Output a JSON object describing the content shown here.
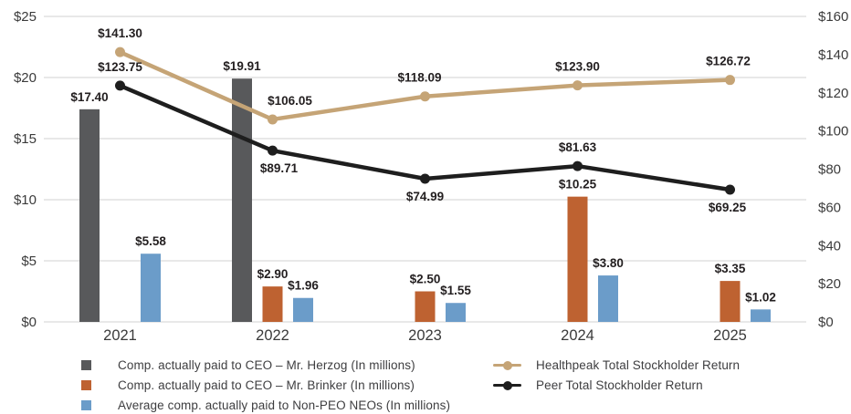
{
  "chart_data": {
    "type": "combo-bar-line",
    "title": "",
    "categories": [
      "2021",
      "2022",
      "2023",
      "2024",
      "2025"
    ],
    "left_axis": {
      "ticks": [
        "$25",
        "$20",
        "$15",
        "$10",
        "$5",
        "$0"
      ],
      "min": 0,
      "max": 25
    },
    "right_axis": {
      "ticks": [
        "$160",
        "$140",
        "$120",
        "$100",
        "$80",
        "$60",
        "$40",
        "$20",
        "$0"
      ],
      "min": 0,
      "max": 160
    },
    "grid": true,
    "legend_position": "bottom",
    "bar_series": [
      {
        "key": "ceo-herzog",
        "name": "Comp. actually paid to CEO – Mr. Herzog (In millions)",
        "color": "#58595B",
        "values": [
          17.4,
          19.91,
          null,
          null,
          null
        ],
        "labels": [
          "$17.40",
          "$19.91",
          "",
          "",
          ""
        ]
      },
      {
        "key": "ceo-brinker",
        "name": "Comp. actually paid to CEO – Mr. Brinker (In millions)",
        "color": "#BE6231",
        "values": [
          null,
          2.9,
          2.5,
          10.25,
          3.35
        ],
        "labels": [
          "",
          "$2.90",
          "$2.50",
          "$10.25",
          "$3.35"
        ]
      },
      {
        "key": "non-peo-neos",
        "name": "Average comp. actually paid to Non-PEO NEOs (In millions)",
        "color": "#6B9CC9",
        "values": [
          5.58,
          1.96,
          1.55,
          3.8,
          1.02
        ],
        "labels": [
          "$5.58",
          "$1.96",
          "$1.55",
          "$3.80",
          "$1.02"
        ]
      }
    ],
    "line_series": [
      {
        "key": "healthpeak-tsr",
        "name": "Healthpeak Total Stockholder Return",
        "color": "#C5A476",
        "values": [
          141.3,
          106.05,
          118.09,
          123.9,
          126.72
        ],
        "labels": [
          "$141.30",
          "$106.05",
          "$118.09",
          "$123.90",
          "$126.72"
        ],
        "label_side": [
          "above",
          "above",
          "above",
          "above",
          "above"
        ],
        "label_dx": [
          0,
          19,
          -6,
          0,
          -2
        ]
      },
      {
        "key": "peer-tsr",
        "name": "Peer Total Stockholder Return",
        "color": "#1E1E1E",
        "values": [
          123.75,
          89.71,
          74.99,
          81.63,
          69.25
        ],
        "labels": [
          "$123.75",
          "$89.71",
          "$74.99",
          "$81.63",
          "$69.25"
        ],
        "label_side": [
          "above",
          "below",
          "below",
          "above",
          "below"
        ],
        "label_dx": [
          0,
          7,
          0,
          0,
          -3
        ]
      }
    ],
    "colors": {
      "grid": "#DBDBDB",
      "axis_text": "#3B3B3B",
      "category_text": "#3A3A3A",
      "value_label_text": "#231F20",
      "background": "#FFFFFF"
    }
  }
}
